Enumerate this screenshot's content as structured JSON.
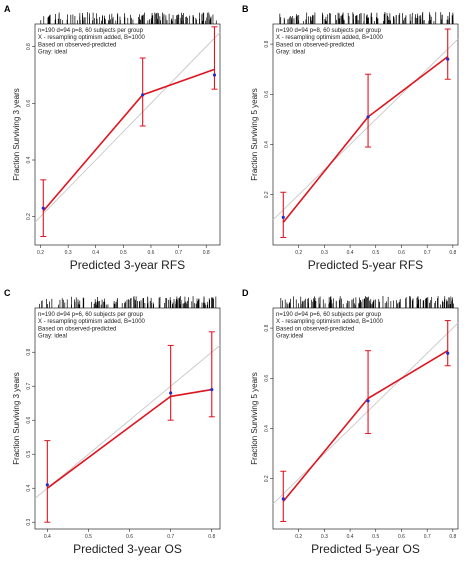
{
  "chart_data": [
    {
      "panel": "A",
      "type": "line",
      "ylabel": "Fraction Surviving 3 years",
      "xlabel": "Predicted  3-year RFS",
      "annotations": [
        "n=190 d=94 p=8, 60 subjects per group",
        "X - resampling optimism added, B=1000",
        "Based on observed-predicted",
        "Gray: ideal"
      ],
      "xlim": [
        0.18,
        0.85
      ],
      "ylim": [
        0.1,
        0.88
      ],
      "x_ticks": [
        0.2,
        0.3,
        0.4,
        0.5,
        0.6,
        0.7,
        0.8
      ],
      "y_ticks": [
        0.2,
        0.4,
        0.6,
        0.8
      ],
      "series": [
        {
          "x": [
            0.21,
            0.57,
            0.83
          ],
          "y": [
            0.22,
            0.63,
            0.72
          ],
          "lower": [
            0.13,
            0.52,
            0.65
          ],
          "upper": [
            0.33,
            0.76,
            0.87
          ],
          "color": "#e0141e"
        }
      ],
      "blue_points": {
        "x": [
          0.21,
          0.57,
          0.83
        ],
        "y": [
          0.23,
          0.63,
          0.7
        ]
      },
      "ideal_color": "#c8c8c8"
    },
    {
      "panel": "B",
      "type": "line",
      "ylabel": "Fraction Surviving 5 years",
      "xlabel": "Predicted  5-year RFS",
      "annotations": [
        "n=190 d=94 p=8, 60 subjects per group",
        "X - resampling optimism added, B=1000",
        "Based on observed-predicted",
        "Gray: ideal"
      ],
      "xlim": [
        0.1,
        0.82
      ],
      "ylim": [
        0.0,
        0.88
      ],
      "x_ticks": [
        0.2,
        0.3,
        0.4,
        0.5,
        0.6,
        0.7,
        0.8
      ],
      "y_ticks": [
        0.2,
        0.4,
        0.6,
        0.8
      ],
      "series": [
        {
          "x": [
            0.14,
            0.47,
            0.78
          ],
          "y": [
            0.09,
            0.51,
            0.75
          ],
          "lower": [
            0.03,
            0.39,
            0.66
          ],
          "upper": [
            0.21,
            0.68,
            0.86
          ],
          "color": "#e0141e"
        }
      ],
      "blue_points": {
        "x": [
          0.14,
          0.47,
          0.78
        ],
        "y": [
          0.11,
          0.51,
          0.74
        ]
      },
      "ideal_color": "#c8c8c8"
    },
    {
      "panel": "C",
      "type": "line",
      "ylabel": "Fraction Surviving 3 years",
      "xlabel": "Predicted  3-year OS",
      "annotations": [
        "n=190 d=94 p=6, 60 subjects per group",
        "X - resampling optimism added, B=1000",
        "Based on observed-predicted",
        "Gray: ideal"
      ],
      "xlim": [
        0.37,
        0.82
      ],
      "ylim": [
        0.28,
        0.93
      ],
      "x_ticks": [
        0.4,
        0.5,
        0.6,
        0.7,
        0.8
      ],
      "y_ticks": [
        0.3,
        0.4,
        0.5,
        0.6,
        0.7,
        0.8
      ],
      "series": [
        {
          "x": [
            0.4,
            0.7,
            0.8
          ],
          "y": [
            0.4,
            0.67,
            0.69
          ],
          "lower": [
            0.3,
            0.6,
            0.61
          ],
          "upper": [
            0.54,
            0.82,
            0.86
          ],
          "color": "#e0141e"
        }
      ],
      "blue_points": {
        "x": [
          0.4,
          0.7,
          0.8
        ],
        "y": [
          0.41,
          0.68,
          0.69
        ]
      },
      "ideal_color": "#c8c8c8"
    },
    {
      "panel": "D",
      "type": "line",
      "ylabel": "Fraction Surviving 5 years",
      "xlabel": "Predicted  5-year OS",
      "annotations": [
        "n=190 d=94 p=6, 60 subjects per group",
        "X - resampling optimism added, B=1000",
        "Based on observed-predicted",
        "Gray:ideal"
      ],
      "xlim": [
        0.1,
        0.82
      ],
      "ylim": [
        0.0,
        0.88
      ],
      "x_ticks": [
        0.2,
        0.3,
        0.4,
        0.5,
        0.6,
        0.7,
        0.8
      ],
      "y_ticks": [
        0.2,
        0.4,
        0.6,
        0.8
      ],
      "series": [
        {
          "x": [
            0.14,
            0.47,
            0.78
          ],
          "y": [
            0.11,
            0.52,
            0.71
          ],
          "lower": [
            0.03,
            0.38,
            0.65
          ],
          "upper": [
            0.23,
            0.71,
            0.83
          ],
          "color": "#e0141e"
        }
      ],
      "blue_points": {
        "x": [
          0.14,
          0.47,
          0.78
        ],
        "y": [
          0.12,
          0.51,
          0.7
        ]
      },
      "ideal_color": "#c8c8c8"
    }
  ]
}
